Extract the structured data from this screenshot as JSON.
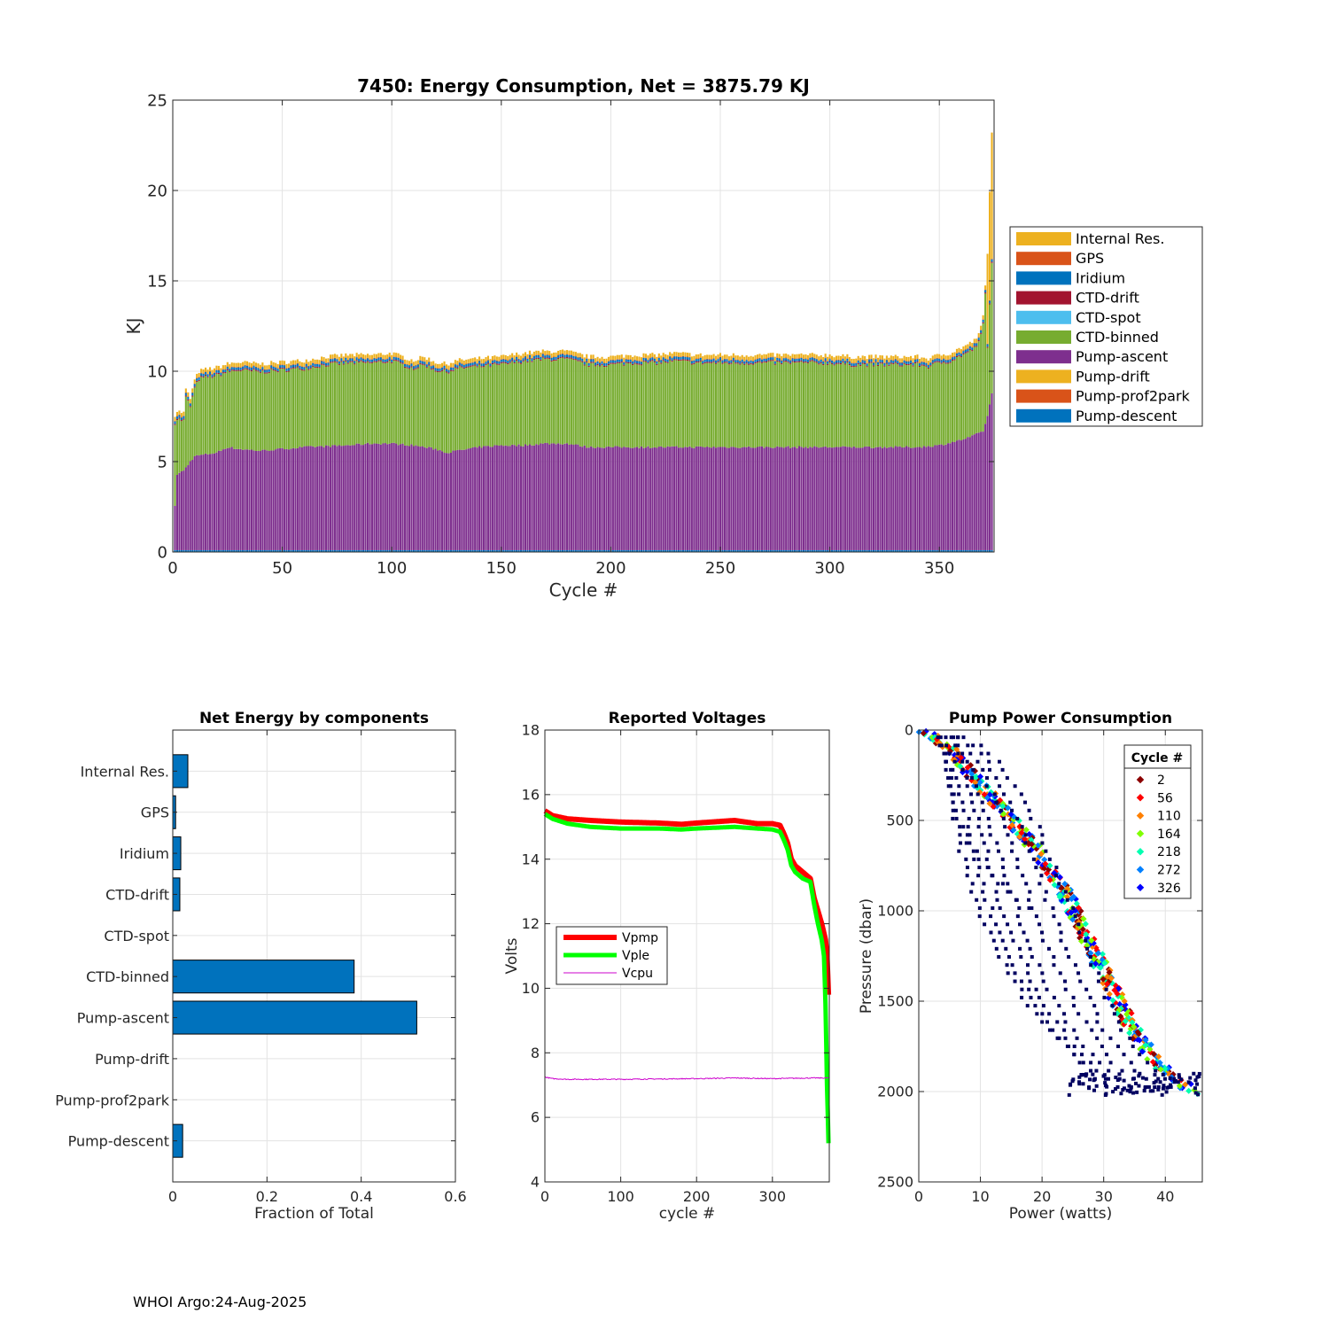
{
  "footer": "WHOI Argo:24-Aug-2025",
  "chart_data": [
    {
      "id": "energy",
      "type": "bar",
      "stacked": true,
      "title": "7450: Energy Consumption,  Net = 3875.79 KJ",
      "xlabel": "Cycle #",
      "ylabel": "KJ",
      "xlim": [
        0,
        375
      ],
      "ylim": [
        0,
        25
      ],
      "xticks": [
        0,
        50,
        100,
        150,
        200,
        250,
        300,
        350
      ],
      "yticks": [
        0,
        5,
        10,
        15,
        20,
        25
      ],
      "grid": true,
      "legend_position": "right",
      "cycles": 374,
      "components": [
        {
          "name": "Pump-descent",
          "color": "#0072BD"
        },
        {
          "name": "Pump-prof2park",
          "color": "#D95319"
        },
        {
          "name": "Pump-drift",
          "color": "#EDB120"
        },
        {
          "name": "Pump-ascent",
          "color": "#7E2F8E"
        },
        {
          "name": "CTD-binned",
          "color": "#77AC30"
        },
        {
          "name": "CTD-spot",
          "color": "#4DBEEE"
        },
        {
          "name": "CTD-drift",
          "color": "#A2142F"
        },
        {
          "name": "Iridium",
          "color": "#0072BD"
        },
        {
          "name": "GPS",
          "color": "#D95319"
        },
        {
          "name": "Internal Res.",
          "color": "#EDB120"
        }
      ],
      "legend_order": [
        "Internal Res.",
        "GPS",
        "Iridium",
        "CTD-drift",
        "CTD-spot",
        "CTD-binned",
        "Pump-ascent",
        "Pump-drift",
        "Pump-prof2park",
        "Pump-descent"
      ],
      "typical_values_kj": {
        "Pump-descent": 0.1,
        "Pump-prof2park": 0.0,
        "Pump-drift": 0.0,
        "Pump-ascent": 5.7,
        "CTD-binned": 4.2,
        "CTD-spot": 0.0,
        "CTD-drift": 0.1,
        "Iridium": 0.15,
        "GPS": 0.03,
        "Internal Res.": 0.3
      },
      "pump_ascent_profile": [
        [
          1,
          2.5
        ],
        [
          2,
          4.3
        ],
        [
          5,
          4.5
        ],
        [
          8,
          5.0
        ],
        [
          10,
          5.3
        ],
        [
          15,
          5.4
        ],
        [
          20,
          5.5
        ],
        [
          25,
          5.8
        ],
        [
          30,
          5.7
        ],
        [
          40,
          5.6
        ],
        [
          50,
          5.7
        ],
        [
          60,
          5.8
        ],
        [
          80,
          5.9
        ],
        [
          90,
          6.0
        ],
        [
          100,
          6.0
        ],
        [
          110,
          5.9
        ],
        [
          120,
          5.7
        ],
        [
          125,
          5.5
        ],
        [
          140,
          5.8
        ],
        [
          150,
          5.9
        ],
        [
          160,
          5.9
        ],
        [
          170,
          6.0
        ],
        [
          180,
          6.0
        ],
        [
          190,
          5.8
        ],
        [
          200,
          5.8
        ],
        [
          250,
          5.8
        ],
        [
          300,
          5.8
        ],
        [
          340,
          5.8
        ],
        [
          350,
          5.9
        ],
        [
          360,
          6.2
        ],
        [
          365,
          6.4
        ],
        [
          370,
          6.7
        ],
        [
          372,
          7.5
        ],
        [
          374,
          8.8
        ]
      ],
      "total_profile": [
        [
          1,
          7.6
        ],
        [
          2,
          7.8
        ],
        [
          5,
          7.7
        ],
        [
          6,
          9.0
        ],
        [
          8,
          8.5
        ],
        [
          10,
          9.5
        ],
        [
          12,
          10.0
        ],
        [
          15,
          10.1
        ],
        [
          20,
          10.2
        ],
        [
          25,
          10.4
        ],
        [
          30,
          10.5
        ],
        [
          40,
          10.4
        ],
        [
          50,
          10.5
        ],
        [
          60,
          10.6
        ],
        [
          70,
          10.8
        ],
        [
          80,
          10.9
        ],
        [
          90,
          10.9
        ],
        [
          100,
          11.0
        ],
        [
          110,
          10.6
        ],
        [
          115,
          10.8
        ],
        [
          120,
          10.5
        ],
        [
          125,
          10.4
        ],
        [
          130,
          10.6
        ],
        [
          140,
          10.7
        ],
        [
          150,
          10.8
        ],
        [
          160,
          11.0
        ],
        [
          170,
          11.1
        ],
        [
          180,
          11.1
        ],
        [
          190,
          10.8
        ],
        [
          200,
          10.8
        ],
        [
          210,
          10.9
        ],
        [
          220,
          10.9
        ],
        [
          230,
          11.0
        ],
        [
          240,
          10.9
        ],
        [
          250,
          10.9
        ],
        [
          260,
          10.9
        ],
        [
          270,
          10.9
        ],
        [
          280,
          10.9
        ],
        [
          290,
          10.9
        ],
        [
          300,
          10.9
        ],
        [
          310,
          10.8
        ],
        [
          320,
          10.8
        ],
        [
          330,
          10.8
        ],
        [
          340,
          10.8
        ],
        [
          345,
          10.7
        ],
        [
          350,
          10.9
        ],
        [
          355,
          11.0
        ],
        [
          360,
          11.3
        ],
        [
          365,
          11.6
        ],
        [
          368,
          12.0
        ],
        [
          370,
          13.0
        ],
        [
          372,
          16.5
        ],
        [
          374,
          23.4
        ]
      ]
    },
    {
      "id": "components",
      "type": "bar",
      "orientation": "horizontal",
      "title": "Net Energy by components",
      "xlabel": "Fraction of Total",
      "xlim": [
        0,
        0.6
      ],
      "xticks": [
        0,
        0.2,
        0.4,
        0.6
      ],
      "xtick_labels": [
        "0",
        "0.2",
        "0.4",
        "0.6"
      ],
      "grid": true,
      "color": "#0072BD",
      "categories": [
        "Internal Res.",
        "GPS",
        "Iridium",
        "CTD-drift",
        "CTD-spot",
        "CTD-binned",
        "Pump-ascent",
        "Pump-drift",
        "Pump-prof2park",
        "Pump-descent"
      ],
      "values": [
        0.032,
        0.006,
        0.017,
        0.015,
        0.0,
        0.385,
        0.518,
        0.0,
        0.0,
        0.021
      ]
    },
    {
      "id": "voltages",
      "type": "line",
      "title": "Reported Voltages",
      "xlabel": "cycle #",
      "ylabel": "Volts",
      "xlim": [
        0,
        375
      ],
      "ylim": [
        4,
        18
      ],
      "xticks": [
        0,
        100,
        200,
        300
      ],
      "yticks": [
        4,
        6,
        8,
        10,
        12,
        14,
        16,
        18
      ],
      "grid": true,
      "legend_position": "left",
      "series": [
        {
          "name": "Vpmp",
          "color": "#FF0000",
          "width": 6,
          "points": [
            [
              0,
              15.5
            ],
            [
              10,
              15.35
            ],
            [
              30,
              15.25
            ],
            [
              60,
              15.2
            ],
            [
              100,
              15.15
            ],
            [
              150,
              15.12
            ],
            [
              180,
              15.08
            ],
            [
              200,
              15.12
            ],
            [
              250,
              15.2
            ],
            [
              280,
              15.1
            ],
            [
              300,
              15.1
            ],
            [
              310,
              15.05
            ],
            [
              315,
              14.8
            ],
            [
              320,
              14.5
            ],
            [
              325,
              14.0
            ],
            [
              330,
              13.8
            ],
            [
              340,
              13.6
            ],
            [
              350,
              13.4
            ],
            [
              355,
              12.8
            ],
            [
              360,
              12.4
            ],
            [
              365,
              12.0
            ],
            [
              370,
              11.5
            ],
            [
              372,
              11.0
            ],
            [
              374,
              9.8
            ]
          ]
        },
        {
          "name": "Vple",
          "color": "#00FF00",
          "width": 5,
          "points": [
            [
              0,
              15.4
            ],
            [
              10,
              15.25
            ],
            [
              30,
              15.1
            ],
            [
              60,
              15.0
            ],
            [
              100,
              14.95
            ],
            [
              150,
              14.95
            ],
            [
              180,
              14.92
            ],
            [
              200,
              14.95
            ],
            [
              250,
              15.0
            ],
            [
              280,
              14.95
            ],
            [
              300,
              14.92
            ],
            [
              310,
              14.85
            ],
            [
              315,
              14.6
            ],
            [
              320,
              14.3
            ],
            [
              325,
              13.8
            ],
            [
              330,
              13.6
            ],
            [
              340,
              13.4
            ],
            [
              350,
              13.3
            ],
            [
              355,
              12.6
            ],
            [
              360,
              12.0
            ],
            [
              365,
              11.5
            ],
            [
              368,
              11.0
            ],
            [
              370,
              9.5
            ],
            [
              372,
              7.0
            ],
            [
              374,
              5.2
            ]
          ]
        },
        {
          "name": "Vcpu",
          "color": "#CC00CC",
          "width": 1,
          "points": [
            [
              0,
              7.25
            ],
            [
              10,
              7.2
            ],
            [
              30,
              7.18
            ],
            [
              100,
              7.18
            ],
            [
              150,
              7.19
            ],
            [
              200,
              7.2
            ],
            [
              250,
              7.22
            ],
            [
              300,
              7.2
            ],
            [
              350,
              7.22
            ],
            [
              374,
              7.22
            ]
          ]
        }
      ]
    },
    {
      "id": "pump",
      "type": "scatter",
      "title": "Pump Power Consumption",
      "xlabel": "Power (watts)",
      "ylabel": "Pressure (dbar)",
      "xlim": [
        0,
        46
      ],
      "ylim": [
        2500,
        0
      ],
      "xticks": [
        0,
        10,
        20,
        30,
        40
      ],
      "yticks": [
        0,
        500,
        1000,
        1500,
        2000,
        2500
      ],
      "grid": true,
      "legend_title": "Cycle #",
      "legend_position": "top-right",
      "legend": [
        {
          "label": "2",
          "color": "#8B0000"
        },
        {
          "label": "56",
          "color": "#FF0000"
        },
        {
          "label": "110",
          "color": "#FF8000"
        },
        {
          "label": "164",
          "color": "#80FF00"
        },
        {
          "label": "218",
          "color": "#00FFB0"
        },
        {
          "label": "272",
          "color": "#0080FF"
        },
        {
          "label": "326",
          "color": "#0000FF"
        }
      ],
      "envelope": [
        [
          2,
          0
        ],
        [
          6,
          100
        ],
        [
          10,
          250
        ],
        [
          15,
          450
        ],
        [
          20,
          650
        ],
        [
          25,
          900
        ],
        [
          30,
          1250
        ],
        [
          35,
          1600
        ],
        [
          40,
          1850
        ],
        [
          44,
          1950
        ],
        [
          46,
          2020
        ]
      ],
      "dark_color": "#000060"
    }
  ]
}
